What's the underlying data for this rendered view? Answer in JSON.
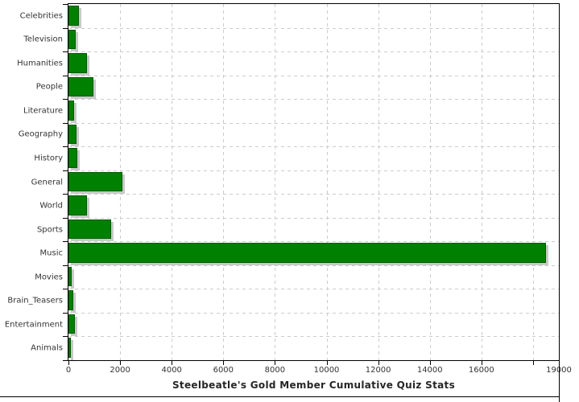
{
  "chart_data": {
    "type": "bar",
    "orientation": "horizontal",
    "title": "Steelbeatle's Gold Member Cumulative Quiz Stats",
    "categories": [
      "Celebrities",
      "Television",
      "Humanities",
      "People",
      "Literature",
      "Geography",
      "History",
      "General",
      "World",
      "Sports",
      "Music",
      "Movies",
      "Brain_Teasers",
      "Entertainment",
      "Animals"
    ],
    "values": [
      400,
      280,
      720,
      970,
      210,
      300,
      330,
      2100,
      710,
      1640,
      18500,
      130,
      190,
      260,
      90
    ],
    "xlim": [
      0,
      19000
    ],
    "x_ticks": [
      {
        "v": 0,
        "label": "0"
      },
      {
        "v": 2000,
        "label": "2000"
      },
      {
        "v": 4000,
        "label": "4000"
      },
      {
        "v": 6000,
        "label": "6000"
      },
      {
        "v": 8000,
        "label": "8000"
      },
      {
        "v": 10000,
        "label": "10000"
      },
      {
        "v": 12000,
        "label": "12000"
      },
      {
        "v": 14000,
        "label": "14000"
      },
      {
        "v": 16000,
        "label": "16000"
      },
      {
        "v": 18000,
        "label": ""
      },
      {
        "v": 19000,
        "label": "19000"
      }
    ],
    "grid": "dashed",
    "legend": "none",
    "colors": {
      "bar_fill": "#008000",
      "bar_border": "#005a00",
      "bar_shadow": "#c9c9c9",
      "gridline": "#cccccc",
      "axis": "#000000",
      "label_text": "#333333",
      "background": "#ffffff"
    }
  }
}
